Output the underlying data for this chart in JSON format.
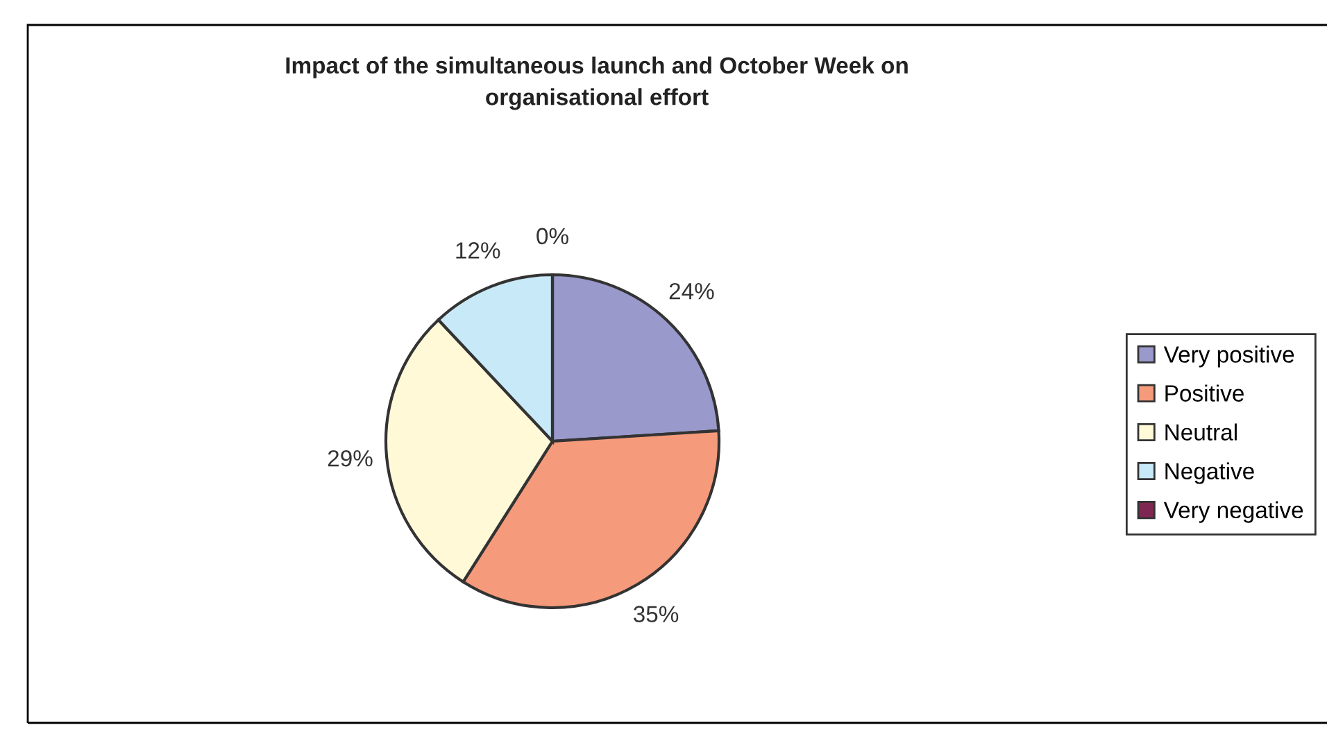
{
  "chart_data": {
    "type": "pie",
    "title": "Impact of the simultaneous launch and October Week on\norganisational effort",
    "categories": [
      "Very positive",
      "Positive",
      "Neutral",
      "Negative",
      "Very negative"
    ],
    "values": [
      24,
      35,
      29,
      12,
      0
    ],
    "value_labels": [
      "24%",
      "35%",
      "29%",
      "12%",
      "0%"
    ],
    "colors": [
      "#9999cc",
      "#f59a7a",
      "#fff9d8",
      "#c8e9f8",
      "#7e2752"
    ],
    "legend": "right"
  }
}
